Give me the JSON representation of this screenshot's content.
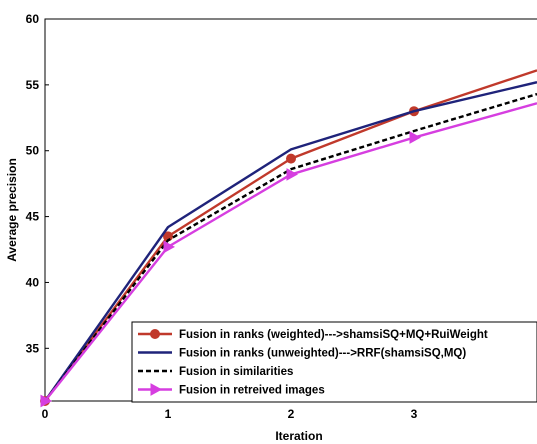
{
  "chart_data": {
    "type": "line",
    "xlabel": "Iteration",
    "ylabel": "Average precision",
    "xlim": [
      0,
      4
    ],
    "ylim": [
      31,
      60
    ],
    "x_ticks": [
      "0",
      "1",
      "2",
      "3"
    ],
    "y_ticks": [
      "35",
      "40",
      "45",
      "50",
      "55",
      "60"
    ],
    "legend_position": "bottom-right",
    "grid": false,
    "x": [
      0,
      1,
      2,
      3,
      4
    ],
    "series": [
      {
        "name": "Fusion in ranks (weighted)--->shamsiSQ+MQ+RuiWeight",
        "values": [
          31,
          43.5,
          49.4,
          53.0,
          56.1
        ],
        "color": "#c0392b",
        "dash": "solid",
        "marker": "circle"
      },
      {
        "name": "Fusion in ranks (unweighted)--->RRF(shamsiSQ,MQ)",
        "values": [
          31,
          44.2,
          50.1,
          53.0,
          55.2
        ],
        "color": "#1f237a",
        "dash": "solid",
        "marker": "none"
      },
      {
        "name": "Fusion in similarities",
        "values": [
          31,
          43.2,
          48.6,
          51.5,
          54.3
        ],
        "color": "#000000",
        "dash": "dashed",
        "marker": "none"
      },
      {
        "name": "Fusion in retreived images",
        "values": [
          31,
          42.7,
          48.2,
          51.0,
          53.6
        ],
        "color": "#d63ee0",
        "dash": "solid",
        "marker": "triangle"
      }
    ]
  }
}
